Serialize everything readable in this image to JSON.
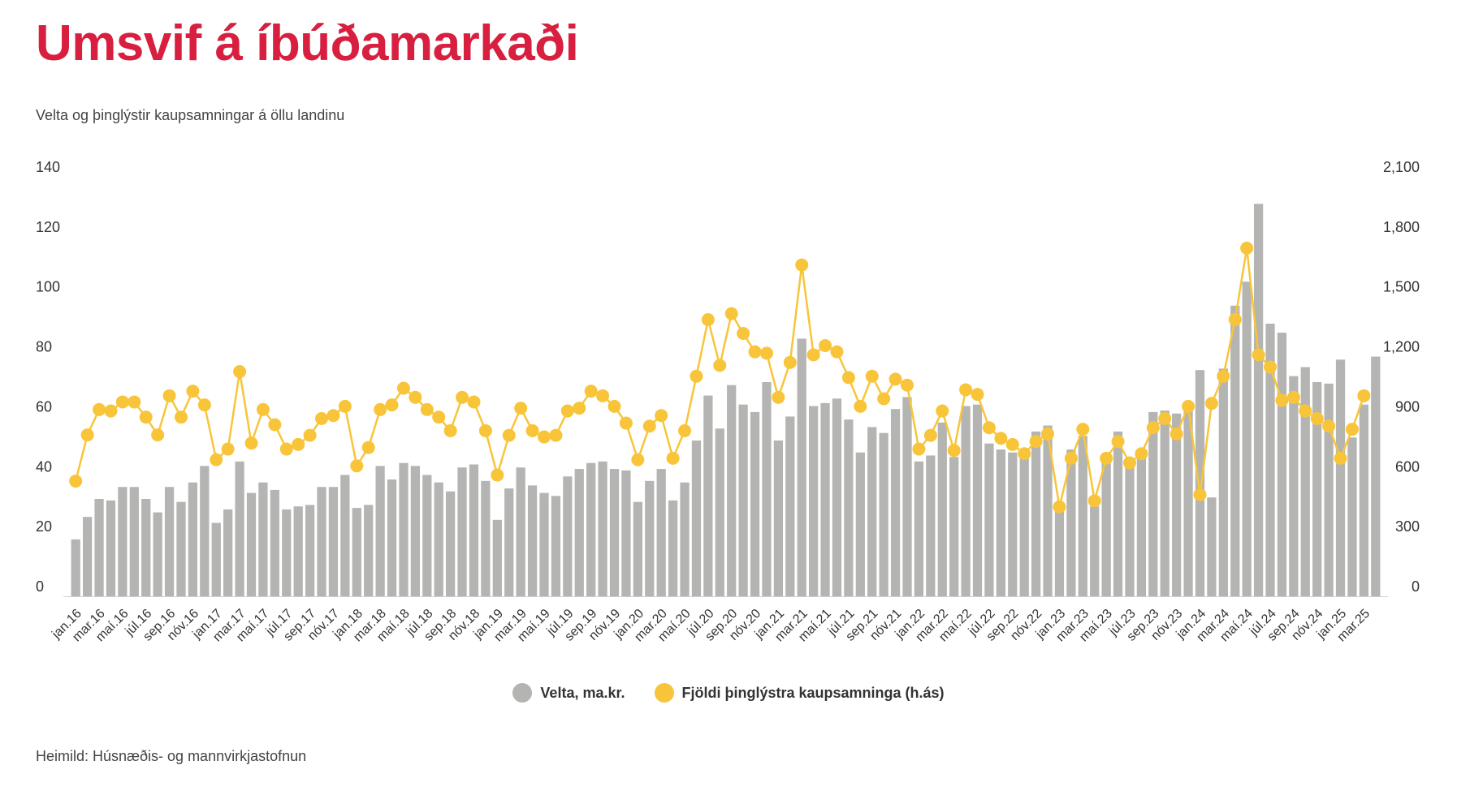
{
  "header": {
    "title": "Umsvif á íbúðamarkaði",
    "subtitle": "Velta og þinglýstir kaupsamningar á öllu landinu"
  },
  "footer": {
    "source": "Heimild: Húsnæðis- og mannvirkjastofnun"
  },
  "legend": {
    "items": [
      {
        "label": "Velta, ma.kr.",
        "color": "#b4b4b2"
      },
      {
        "label": "Fjöldi þinglýstra kaupsamninga (h.ás)",
        "color": "#f8c53a"
      }
    ]
  },
  "chart_data": {
    "type": "bar+line",
    "legend_position": "bottom-center",
    "grid": false,
    "y_left": {
      "min": 0,
      "max": 140,
      "ticks": [
        "0",
        "20",
        "40",
        "60",
        "80",
        "100",
        "120",
        "140"
      ]
    },
    "y_right": {
      "min": 0,
      "max": 2100,
      "ticks": [
        "0",
        "300",
        "600",
        "900",
        "1,200",
        "1,500",
        "1,800",
        "2,100"
      ]
    },
    "x_labels": [
      "jan.16",
      "mar.16",
      "maí.16",
      "júl.16",
      "sep.16",
      "nóv.16",
      "jan.17",
      "mar.17",
      "maí.17",
      "júl.17",
      "sep.17",
      "nóv.17",
      "jan.18",
      "mar.18",
      "maí.18",
      "júl.18",
      "sep.18",
      "nóv.18",
      "jan.19",
      "mar.19",
      "maí.19",
      "júl.19",
      "sep.19",
      "nóv.19",
      "jan.20",
      "mar.20",
      "maí.20",
      "júl.20",
      "sep.20",
      "nóv.20",
      "jan.21",
      "mar.21",
      "maí.21",
      "júl.21",
      "sep.21",
      "nóv.21",
      "jan.22",
      "mar.22",
      "maí.22",
      "júl.22",
      "sep.22",
      "nóv.22",
      "jan.23",
      "mar.23",
      "maí.23",
      "júl.23",
      "sep.23",
      "nóv.23",
      "jan.24",
      "mar.24",
      "maí.24",
      "júl.24",
      "sep.24",
      "nóv.24",
      "jan.25",
      "mar.25"
    ],
    "series": [
      {
        "name": "Velta, ma.kr.",
        "type": "bar",
        "axis": "left",
        "color": "#b4b4b2",
        "values": [
          19,
          26.5,
          32.5,
          32,
          36.5,
          36.5,
          32.5,
          28,
          36.5,
          31.5,
          38,
          43.5,
          24.5,
          29,
          45,
          34.5,
          38,
          35.5,
          29,
          30,
          30.5,
          36.5,
          36.5,
          40.5,
          29.5,
          30.5,
          43.5,
          39,
          44.5,
          43.5,
          40.5,
          38,
          35,
          43,
          44,
          38.5,
          25.5,
          36,
          43,
          37,
          34.5,
          33.5,
          40,
          42.5,
          44.5,
          45,
          42.5,
          42,
          31.5,
          38.5,
          42.5,
          32,
          38,
          52,
          67,
          56,
          70.5,
          64,
          61.5,
          71.5,
          52,
          60,
          86,
          63.5,
          64.5,
          66,
          59,
          48,
          56.5,
          54.5,
          62.5,
          66.5,
          45,
          47,
          58,
          46.5,
          63.5,
          64,
          51,
          49,
          48,
          46,
          55,
          57,
          29,
          49,
          53.5,
          30,
          47,
          55,
          44,
          48,
          61.5,
          62,
          61,
          64,
          75.5,
          33,
          76,
          97,
          105,
          131,
          91,
          88,
          73.5,
          76.5,
          71.5,
          71,
          79,
          53,
          64,
          80
        ]
      },
      {
        "name": "Fjöldi þinglýstra kaupsamninga (h.ás)",
        "type": "line",
        "axis": "right",
        "color": "#f8c53a",
        "values": [
          577,
          808,
          935,
          928,
          973,
          973,
          897,
          808,
          1004,
          897,
          1027,
          958,
          684,
          737,
          1125,
          767,
          935,
          859,
          737,
          760,
          806,
          890,
          905,
          951,
          653,
          745,
          935,
          958,
          1042,
          996,
          935,
          897,
          829,
          996,
          973,
          829,
          607,
          806,
          942,
          829,
          798,
          806,
          928,
          942,
          1027,
          1004,
          951,
          867,
          684,
          852,
          905,
          691,
          829,
          1102,
          1385,
          1156,
          1415,
          1316,
          1224,
          1217,
          996,
          1171,
          1659,
          1209,
          1255,
          1224,
          1095,
          951,
          1102,
          989,
          1087,
          1057,
          737,
          806,
          928,
          730,
          1034,
          1011,
          844,
          791,
          760,
          714,
          775,
          813,
          448,
          691,
          836,
          478,
          691,
          775,
          668,
          714,
          844,
          890,
          813,
          951,
          509,
          966,
          1102,
          1385,
          1743,
          1209,
          1148,
          981,
          996,
          928,
          890,
          852,
          691,
          836,
          1004
        ]
      }
    ]
  }
}
